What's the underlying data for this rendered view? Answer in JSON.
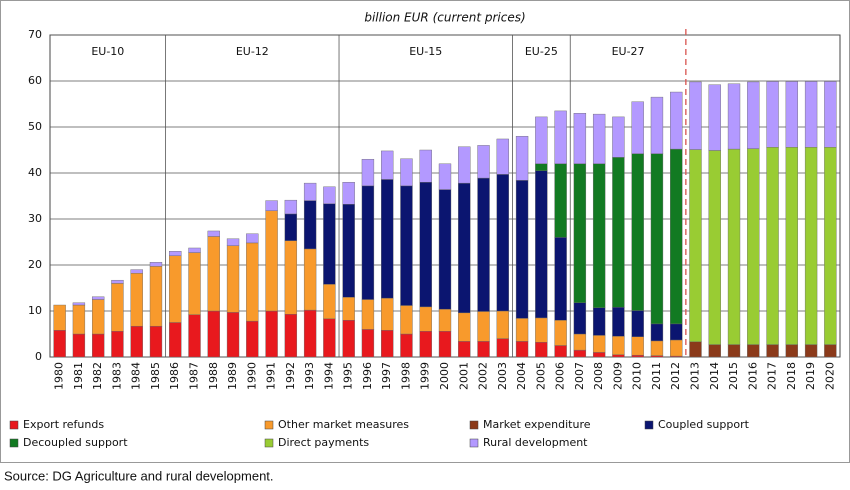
{
  "chart_data": {
    "type": "stacked_bar",
    "title": "billion EUR (current prices)",
    "source": "Source: DG Agriculture and rural development.",
    "categories": [
      "1980",
      "1981",
      "1982",
      "1983",
      "1984",
      "1985",
      "1986",
      "1987",
      "1988",
      "1989",
      "1990",
      "1991",
      "1992",
      "1993",
      "1994",
      "1995",
      "1996",
      "1997",
      "1998",
      "1999",
      "2000",
      "2001",
      "2002",
      "2003",
      "2004",
      "2005",
      "2006",
      "2007",
      "2008",
      "2009",
      "2010",
      "2011",
      "2012",
      "2013",
      "2014",
      "2015",
      "2016",
      "2017",
      "2018",
      "2019",
      "2020"
    ],
    "periods": [
      {
        "label": "EU-10",
        "from": "1980",
        "to": "1985"
      },
      {
        "label": "EU-12",
        "from": "1986",
        "to": "1994"
      },
      {
        "label": "EU-15",
        "from": "1995",
        "to": "2003"
      },
      {
        "label": "EU-25",
        "from": "2004",
        "to": "2006"
      },
      {
        "label": "EU-27",
        "from": "2007",
        "to": "2012"
      }
    ],
    "ylim": [
      0,
      70
    ],
    "yticks": [
      0,
      10,
      20,
      30,
      40,
      50,
      60,
      70
    ],
    "grid": true,
    "series": [
      {
        "name": "Export refunds",
        "color": "#e8191e",
        "values": [
          5.8,
          5,
          5,
          5.6,
          6.7,
          6.7,
          7.5,
          9.2,
          10,
          9.7,
          7.8,
          10,
          9.3,
          10.2,
          8.3,
          8,
          6,
          5.8,
          5,
          5.6,
          5.6,
          3.4,
          3.4,
          4,
          3.4,
          3.2,
          2.5,
          1.5,
          1,
          0.5,
          0.4,
          0.3,
          0.2,
          null,
          null,
          null,
          null,
          null,
          null,
          null,
          null
        ]
      },
      {
        "name": "Other market measures",
        "color": "#f89a2c",
        "values": [
          5.5,
          6.3,
          7.5,
          10.4,
          11.5,
          13,
          14.5,
          13.5,
          16.2,
          14.5,
          17,
          21.8,
          16,
          13.3,
          7.5,
          5,
          6.5,
          7,
          6.2,
          5.3,
          4.8,
          6.2,
          6.5,
          6,
          5,
          5.3,
          5.5,
          3.5,
          3.7,
          4,
          4,
          3.2,
          3.5,
          null,
          null,
          null,
          null,
          null,
          null,
          null,
          null
        ]
      },
      {
        "name": "Market expenditure",
        "color": "#8b3a1a",
        "values": [
          null,
          null,
          null,
          null,
          null,
          null,
          null,
          null,
          null,
          null,
          null,
          null,
          null,
          null,
          null,
          null,
          null,
          null,
          null,
          null,
          null,
          null,
          null,
          null,
          null,
          null,
          null,
          null,
          null,
          null,
          null,
          null,
          null,
          3.3,
          2.7,
          2.7,
          2.7,
          2.7,
          2.7,
          2.7,
          2.7
        ]
      },
      {
        "name": "Coupled support",
        "color": "#0b1570",
        "values": [
          null,
          null,
          null,
          null,
          null,
          null,
          null,
          null,
          null,
          null,
          null,
          null,
          5.8,
          10.5,
          17.5,
          20.2,
          24.7,
          25.8,
          26,
          27.1,
          26,
          28.2,
          29,
          29.7,
          30,
          32,
          18,
          6.8,
          6,
          6.3,
          5.7,
          3.7,
          3.5,
          null,
          null,
          null,
          null,
          null,
          null,
          null,
          null
        ]
      },
      {
        "name": "Decoupled support",
        "color": "#127a22",
        "values": [
          null,
          null,
          null,
          null,
          null,
          null,
          null,
          null,
          null,
          null,
          null,
          null,
          null,
          null,
          null,
          null,
          null,
          null,
          null,
          null,
          null,
          null,
          null,
          null,
          null,
          1.5,
          16,
          30.2,
          31.3,
          32.6,
          34.1,
          37,
          38,
          null,
          null,
          null,
          null,
          null,
          null,
          null,
          null
        ]
      },
      {
        "name": "Direct payments",
        "color": "#99cc33",
        "values": [
          null,
          null,
          null,
          null,
          null,
          null,
          null,
          null,
          null,
          null,
          null,
          null,
          null,
          null,
          null,
          null,
          null,
          null,
          null,
          null,
          null,
          null,
          null,
          null,
          null,
          null,
          null,
          null,
          null,
          null,
          null,
          null,
          null,
          41.8,
          42.2,
          42.5,
          42.6,
          42.9,
          42.9,
          42.9,
          42.9
        ]
      },
      {
        "name": "Rural development",
        "color": "#b399ff",
        "values": [
          null,
          0.5,
          0.6,
          0.7,
          0.8,
          0.9,
          1,
          1,
          1.2,
          1.5,
          2,
          2.2,
          3,
          3.8,
          3.7,
          4.8,
          5.8,
          6.2,
          5.9,
          7,
          5.6,
          7.9,
          7.1,
          7.7,
          9.6,
          10.2,
          11.5,
          11,
          10.8,
          8.8,
          11.3,
          12.3,
          12.4,
          14.7,
          14.3,
          14.2,
          14.5,
          14.3,
          14.3,
          14.3,
          14.3
        ]
      }
    ]
  }
}
